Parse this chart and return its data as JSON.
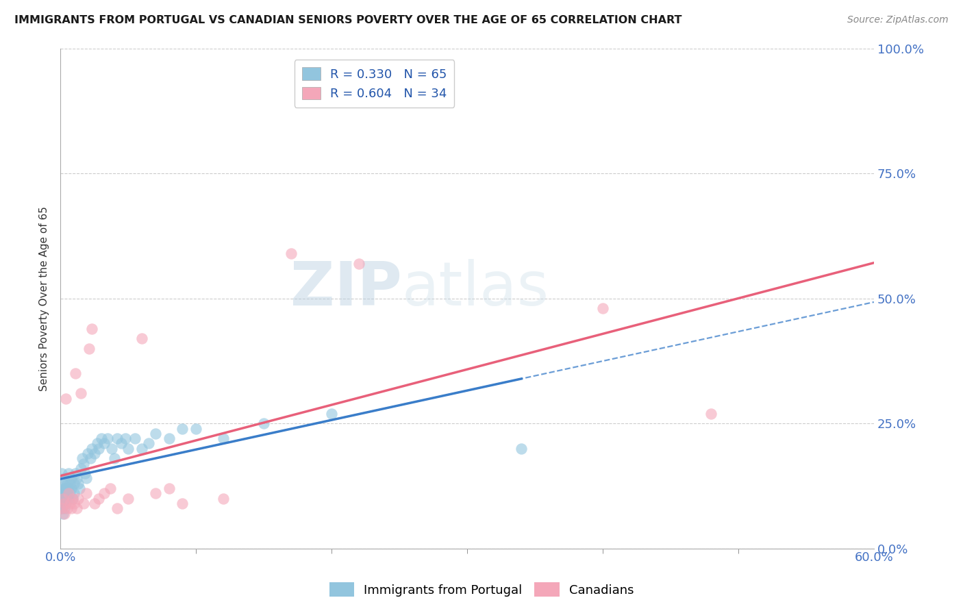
{
  "title": "IMMIGRANTS FROM PORTUGAL VS CANADIAN SENIORS POVERTY OVER THE AGE OF 65 CORRELATION CHART",
  "source": "Source: ZipAtlas.com",
  "ylabel": "Seniors Poverty Over the Age of 65",
  "ytick_vals": [
    0.0,
    0.25,
    0.5,
    0.75,
    1.0
  ],
  "xlim": [
    0.0,
    0.6
  ],
  "ylim": [
    0.0,
    1.0
  ],
  "legend_blue_label": "R = 0.330   N = 65",
  "legend_pink_label": "R = 0.604   N = 34",
  "legend_blue_series": "Immigrants from Portugal",
  "legend_pink_series": "Canadians",
  "blue_color": "#92c5de",
  "pink_color": "#f4a7b9",
  "trend_blue_color": "#3a7dc9",
  "trend_pink_color": "#e8607a",
  "watermark_zip": "ZIP",
  "watermark_atlas": "atlas",
  "blue_R": 0.33,
  "blue_N": 65,
  "pink_R": 0.604,
  "pink_N": 34,
  "blue_points_x": [
    0.001,
    0.001,
    0.001,
    0.001,
    0.002,
    0.002,
    0.002,
    0.002,
    0.002,
    0.003,
    0.003,
    0.003,
    0.003,
    0.004,
    0.004,
    0.004,
    0.005,
    0.005,
    0.005,
    0.005,
    0.006,
    0.006,
    0.006,
    0.007,
    0.007,
    0.008,
    0.008,
    0.009,
    0.01,
    0.01,
    0.011,
    0.012,
    0.013,
    0.014,
    0.015,
    0.016,
    0.017,
    0.018,
    0.019,
    0.02,
    0.022,
    0.023,
    0.025,
    0.027,
    0.028,
    0.03,
    0.032,
    0.035,
    0.038,
    0.04,
    0.042,
    0.045,
    0.048,
    0.05,
    0.055,
    0.06,
    0.065,
    0.07,
    0.08,
    0.09,
    0.1,
    0.12,
    0.15,
    0.2,
    0.34
  ],
  "blue_points_y": [
    0.1,
    0.12,
    0.08,
    0.15,
    0.11,
    0.09,
    0.13,
    0.1,
    0.07,
    0.12,
    0.11,
    0.08,
    0.14,
    0.1,
    0.12,
    0.09,
    0.13,
    0.11,
    0.1,
    0.12,
    0.15,
    0.12,
    0.1,
    0.11,
    0.13,
    0.14,
    0.12,
    0.1,
    0.13,
    0.11,
    0.15,
    0.14,
    0.13,
    0.12,
    0.16,
    0.18,
    0.17,
    0.15,
    0.14,
    0.19,
    0.18,
    0.2,
    0.19,
    0.21,
    0.2,
    0.22,
    0.21,
    0.22,
    0.2,
    0.18,
    0.22,
    0.21,
    0.22,
    0.2,
    0.22,
    0.2,
    0.21,
    0.23,
    0.22,
    0.24,
    0.24,
    0.22,
    0.25,
    0.27,
    0.2
  ],
  "pink_points_x": [
    0.001,
    0.002,
    0.003,
    0.003,
    0.004,
    0.005,
    0.006,
    0.007,
    0.008,
    0.009,
    0.01,
    0.011,
    0.012,
    0.013,
    0.015,
    0.017,
    0.019,
    0.021,
    0.023,
    0.025,
    0.028,
    0.032,
    0.037,
    0.042,
    0.05,
    0.06,
    0.07,
    0.08,
    0.09,
    0.12,
    0.17,
    0.22,
    0.4,
    0.48
  ],
  "pink_points_y": [
    0.08,
    0.1,
    0.09,
    0.07,
    0.3,
    0.08,
    0.11,
    0.09,
    0.08,
    0.1,
    0.09,
    0.35,
    0.08,
    0.1,
    0.31,
    0.09,
    0.11,
    0.4,
    0.44,
    0.09,
    0.1,
    0.11,
    0.12,
    0.08,
    0.1,
    0.42,
    0.11,
    0.12,
    0.09,
    0.1,
    0.59,
    0.57,
    0.48,
    0.27
  ]
}
